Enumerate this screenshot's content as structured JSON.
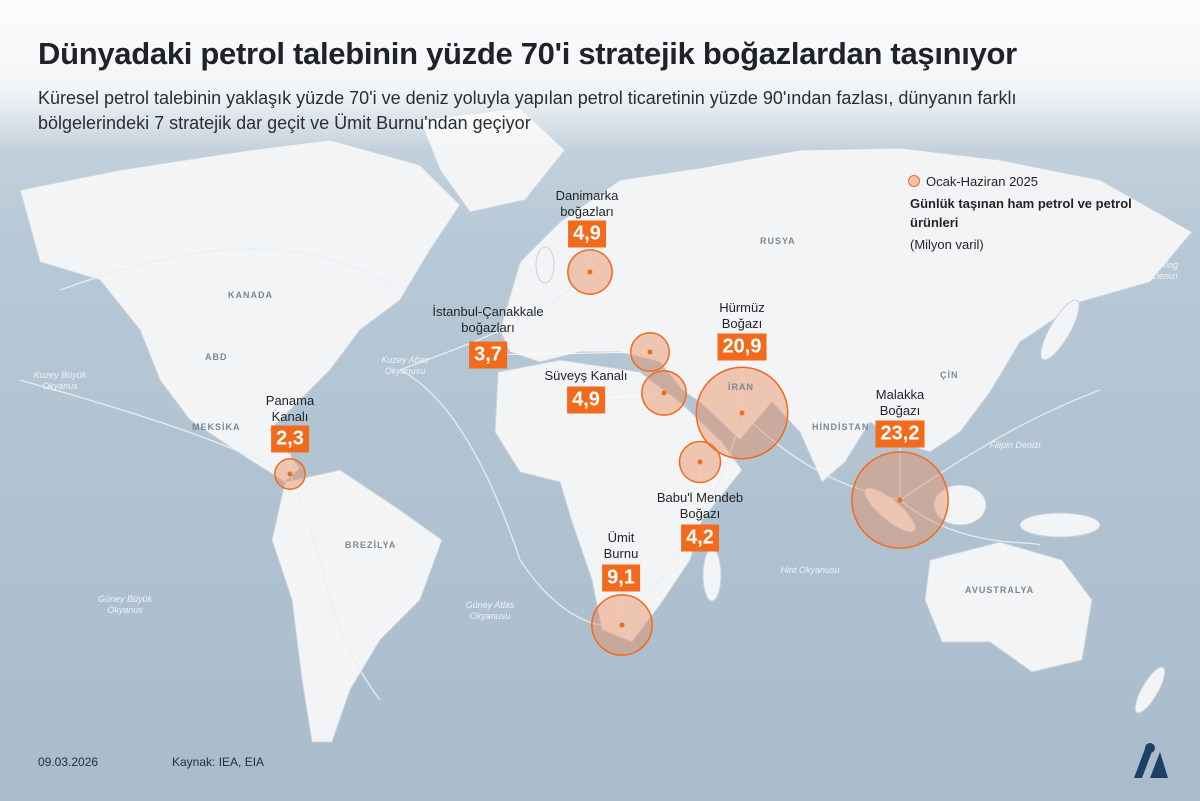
{
  "header": {
    "title": "Dünyadaki petrol talebinin yüzde 70'i stratejik boğazlardan taşınıyor",
    "subtitle": "Küresel petrol talebinin yaklaşık yüzde 70'i ve deniz yoluyla yapılan petrol ticaretinin yüzde 90'ından fazlası, dünyanın farklı bölgelerindeki 7 stratejik dar geçit ve Ümit Burnu'ndan geçiyor"
  },
  "legend": {
    "period": "Ocak-Haziran 2025",
    "measure": "Günlük taşınan ham petrol ve petrol ürünleri",
    "unit": "(Milyon varil)"
  },
  "chokepoints": [
    {
      "name": "Danimarka boğazları",
      "value": 4.9,
      "value_label": "4,9"
    },
    {
      "name": "İstanbul-Çanakkale boğazları",
      "value": 3.7,
      "value_label": "3,7"
    },
    {
      "name": "Süveyş Kanalı",
      "value": 4.9,
      "value_label": "4,9"
    },
    {
      "name": "Hürmüz Boğazı",
      "value": 20.9,
      "value_label": "20,9"
    },
    {
      "name": "Panama Kanalı",
      "value": 2.3,
      "value_label": "2,3"
    },
    {
      "name": "Babu'l Mendeb Boğazı",
      "value": 4.2,
      "value_label": "4,2"
    },
    {
      "name": "Ümit Burnu",
      "value": 9.1,
      "value_label": "9,1"
    },
    {
      "name": "Malakka Boğazı",
      "value": 23.2,
      "value_label": "23,2"
    }
  ],
  "countries": [
    "KANADA",
    "ABD",
    "MEKSİKA",
    "BREZİLYA",
    "RUSYA",
    "İRAN",
    "HİNDİSTAN",
    "ÇİN",
    "AVUSTRALYA"
  ],
  "seas": [
    "Kuzey Büyük Okyanus",
    "Kuzey Atlas Okyanusu",
    "Güney Büyük Okyanus",
    "Güney Atlas Okyanusu",
    "Hint Okyanusu",
    "Filipin Denizi",
    "Bering Denizi"
  ],
  "footer": {
    "date": "09.03.2026",
    "source": "Kaynak: IEA, EIA"
  }
}
